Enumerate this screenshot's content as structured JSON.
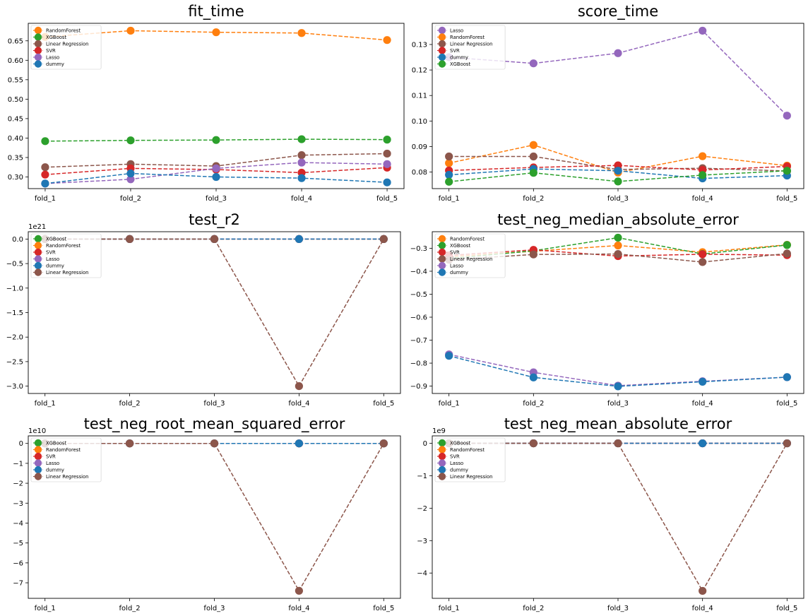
{
  "colors": {
    "RandomForest": "#ff7f0e",
    "XGBoost": "#2ca02c",
    "Linear Regression": "#8c564b",
    "SVR": "#d62728",
    "Lasso": "#9467bd",
    "dummy": "#1f77b4"
  },
  "chart_data": [
    {
      "type": "line",
      "title": "fit_time",
      "categories": [
        "fold_1",
        "fold_2",
        "fold_3",
        "fold_4",
        "fold_5"
      ],
      "ylim": [
        0.27,
        0.695
      ],
      "yticks": [
        0.3,
        0.35,
        0.4,
        0.45,
        0.5,
        0.55,
        0.6,
        0.65
      ],
      "yticklabels": [
        "0.30",
        "0.35",
        "0.40",
        "0.45",
        "0.50",
        "0.55",
        "0.60",
        "0.65"
      ],
      "offset_label": "",
      "legend_position": "upper left",
      "series": [
        {
          "name": "RandomForest",
          "values": [
            0.66,
            0.676,
            0.672,
            0.67,
            0.652
          ]
        },
        {
          "name": "XGBoost",
          "values": [
            0.392,
            0.394,
            0.395,
            0.397,
            0.396
          ]
        },
        {
          "name": "Linear Regression",
          "values": [
            0.325,
            0.333,
            0.328,
            0.356,
            0.36
          ]
        },
        {
          "name": "SVR",
          "values": [
            0.306,
            0.322,
            0.319,
            0.311,
            0.324
          ]
        },
        {
          "name": "Lasso",
          "values": [
            0.283,
            0.294,
            0.322,
            0.337,
            0.333
          ]
        },
        {
          "name": "dummy",
          "values": [
            0.283,
            0.309,
            0.3,
            0.297,
            0.286
          ]
        }
      ]
    },
    {
      "type": "line",
      "title": "score_time",
      "categories": [
        "fold_1",
        "fold_2",
        "fold_3",
        "fold_4",
        "fold_5"
      ],
      "ylim": [
        0.0735,
        0.1383
      ],
      "yticks": [
        0.08,
        0.09,
        0.1,
        0.11,
        0.12,
        0.13
      ],
      "yticklabels": [
        "0.08",
        "0.09",
        "0.10",
        "0.11",
        "0.12",
        "0.13"
      ],
      "offset_label": "",
      "legend_position": "upper left",
      "series": [
        {
          "name": "Lasso",
          "values": [
            0.125,
            0.1226,
            0.1266,
            0.1354,
            0.1021
          ]
        },
        {
          "name": "RandomForest",
          "values": [
            0.0835,
            0.0906,
            0.0798,
            0.0862,
            0.0825
          ]
        },
        {
          "name": "Linear Regression",
          "values": [
            0.0861,
            0.0861,
            0.081,
            0.0815,
            0.0804
          ]
        },
        {
          "name": "SVR",
          "values": [
            0.0806,
            0.0818,
            0.0826,
            0.0808,
            0.0822
          ]
        },
        {
          "name": "dummy",
          "values": [
            0.0789,
            0.0812,
            0.0805,
            0.0775,
            0.0786
          ]
        },
        {
          "name": "XGBoost",
          "values": [
            0.0762,
            0.0797,
            0.0763,
            0.0788,
            0.0805
          ]
        }
      ]
    },
    {
      "type": "line",
      "title": "test_r2",
      "categories": [
        "fold_1",
        "fold_2",
        "fold_3",
        "fold_4",
        "fold_5"
      ],
      "ylim": [
        -3.15,
        0.15
      ],
      "yticks": [
        0.0,
        -0.5,
        -1.0,
        -1.5,
        -2.0,
        -2.5,
        -3.0
      ],
      "yticklabels": [
        "0.0",
        "−0.5",
        "−1.0",
        "−1.5",
        "−2.0",
        "−2.5",
        "−3.0"
      ],
      "offset_label": "1e21",
      "legend_position": "upper left",
      "series": [
        {
          "name": "XGBoost",
          "values": [
            0,
            0,
            0,
            0,
            0
          ]
        },
        {
          "name": "RandomForest",
          "values": [
            0,
            0,
            0,
            0,
            0
          ]
        },
        {
          "name": "SVR",
          "values": [
            0,
            0,
            0,
            0,
            0
          ]
        },
        {
          "name": "Lasso",
          "values": [
            0,
            0,
            0,
            0,
            0
          ]
        },
        {
          "name": "dummy",
          "values": [
            0,
            0,
            0,
            0,
            0
          ]
        },
        {
          "name": "Linear Regression",
          "values": [
            0,
            0,
            0,
            -3.0,
            0
          ]
        }
      ]
    },
    {
      "type": "line",
      "title": "test_neg_median_absolute_error",
      "categories": [
        "fold_1",
        "fold_2",
        "fold_3",
        "fold_4",
        "fold_5"
      ],
      "ylim": [
        -0.932,
        -0.228
      ],
      "yticks": [
        -0.3,
        -0.4,
        -0.5,
        -0.6,
        -0.7,
        -0.8,
        -0.9
      ],
      "yticklabels": [
        "−0.3",
        "−0.4",
        "−0.5",
        "−0.6",
        "−0.7",
        "−0.8",
        "−0.9"
      ],
      "offset_label": "",
      "legend_position": "upper left",
      "series": [
        {
          "name": "RandomForest",
          "values": [
            -0.337,
            -0.313,
            -0.288,
            -0.317,
            -0.285
          ]
        },
        {
          "name": "XGBoost",
          "values": [
            -0.345,
            -0.311,
            -0.254,
            -0.325,
            -0.286
          ]
        },
        {
          "name": "SVR",
          "values": [
            -0.331,
            -0.307,
            -0.334,
            -0.326,
            -0.33
          ]
        },
        {
          "name": "Linear Regression",
          "values": [
            -0.35,
            -0.327,
            -0.325,
            -0.36,
            -0.323
          ]
        },
        {
          "name": "Lasso",
          "values": [
            -0.762,
            -0.84,
            -0.898,
            -0.879,
            -0.861
          ]
        },
        {
          "name": "dummy",
          "values": [
            -0.768,
            -0.862,
            -0.901,
            -0.881,
            -0.861
          ]
        }
      ]
    },
    {
      "type": "line",
      "title": "test_neg_root_mean_squared_error",
      "categories": [
        "fold_1",
        "fold_2",
        "fold_3",
        "fold_4",
        "fold_5"
      ],
      "ylim": [
        -7.78,
        0.38
      ],
      "yticks": [
        0,
        -1,
        -2,
        -3,
        -4,
        -5,
        -6,
        -7
      ],
      "yticklabels": [
        "0",
        "−1",
        "−2",
        "−3",
        "−4",
        "−5",
        "−6",
        "−7"
      ],
      "offset_label": "1e10",
      "legend_position": "upper left",
      "series": [
        {
          "name": "XGBoost",
          "values": [
            0,
            0,
            0,
            0,
            0
          ]
        },
        {
          "name": "RandomForest",
          "values": [
            0,
            0,
            0,
            0,
            0
          ]
        },
        {
          "name": "SVR",
          "values": [
            0,
            0,
            0,
            0,
            0
          ]
        },
        {
          "name": "Lasso",
          "values": [
            0,
            0,
            0,
            0,
            0
          ]
        },
        {
          "name": "dummy",
          "values": [
            0,
            0,
            0,
            0,
            0
          ]
        },
        {
          "name": "Linear Regression",
          "values": [
            0,
            0,
            0,
            -7.4,
            0
          ]
        }
      ]
    },
    {
      "type": "line",
      "title": "test_neg_mean_absolute_error",
      "categories": [
        "fold_1",
        "fold_2",
        "fold_3",
        "fold_4",
        "fold_5"
      ],
      "ylim": [
        -4.78,
        0.23
      ],
      "yticks": [
        0,
        -1,
        -2,
        -3,
        -4
      ],
      "yticklabels": [
        "0",
        "−1",
        "−2",
        "−3",
        "−4"
      ],
      "offset_label": "1e9",
      "legend_position": "upper left",
      "series": [
        {
          "name": "XGBoost",
          "values": [
            0,
            0,
            0,
            0,
            0
          ]
        },
        {
          "name": "RandomForest",
          "values": [
            0,
            0,
            0,
            0,
            0
          ]
        },
        {
          "name": "SVR",
          "values": [
            0,
            0,
            0,
            0,
            0
          ]
        },
        {
          "name": "Lasso",
          "values": [
            0,
            0,
            0,
            0,
            0
          ]
        },
        {
          "name": "dummy",
          "values": [
            0,
            0,
            0,
            0,
            0
          ]
        },
        {
          "name": "Linear Regression",
          "values": [
            0,
            0,
            0,
            -4.55,
            0
          ]
        }
      ]
    }
  ]
}
